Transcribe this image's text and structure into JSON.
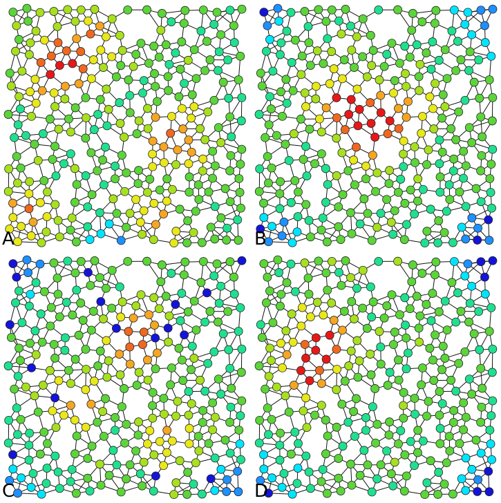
{
  "panels": [
    {
      "label": "A",
      "hotspots": [
        [
          0.22,
          0.28,
          1.0
        ],
        [
          0.7,
          0.55,
          0.95
        ],
        [
          0.1,
          0.85,
          0.75
        ],
        [
          0.6,
          0.88,
          0.8
        ],
        [
          0.35,
          0.15,
          0.6
        ]
      ],
      "cold_corners": [
        "bottom-center"
      ]
    },
    {
      "label": "B",
      "hotspots": [
        [
          0.47,
          0.52,
          1.0
        ],
        [
          0.35,
          0.4,
          0.7
        ],
        [
          0.62,
          0.45,
          0.6
        ]
      ],
      "cold_corners": [
        "top-left",
        "top-right",
        "bottom-left",
        "bottom-right"
      ]
    },
    {
      "label": "C",
      "hotspots": [
        [
          0.55,
          0.35,
          0.9
        ],
        [
          0.3,
          0.6,
          0.6
        ],
        [
          0.7,
          0.75,
          0.55
        ]
      ],
      "cold_corners": [
        "top-left",
        "bottom-left",
        "bottom-right",
        "scattered"
      ]
    },
    {
      "label": "D",
      "hotspots": [
        [
          0.28,
          0.35,
          1.0
        ],
        [
          0.22,
          0.5,
          0.8
        ]
      ],
      "cold_corners": [
        "top-right",
        "bottom-right",
        "bottom-left"
      ]
    }
  ],
  "colormap": [
    "#1414d8",
    "#1e90ff",
    "#00e5ff",
    "#20e090",
    "#5cd43a",
    "#a8e020",
    "#e8e81a",
    "#f5a623",
    "#f06820",
    "#e81818"
  ]
}
